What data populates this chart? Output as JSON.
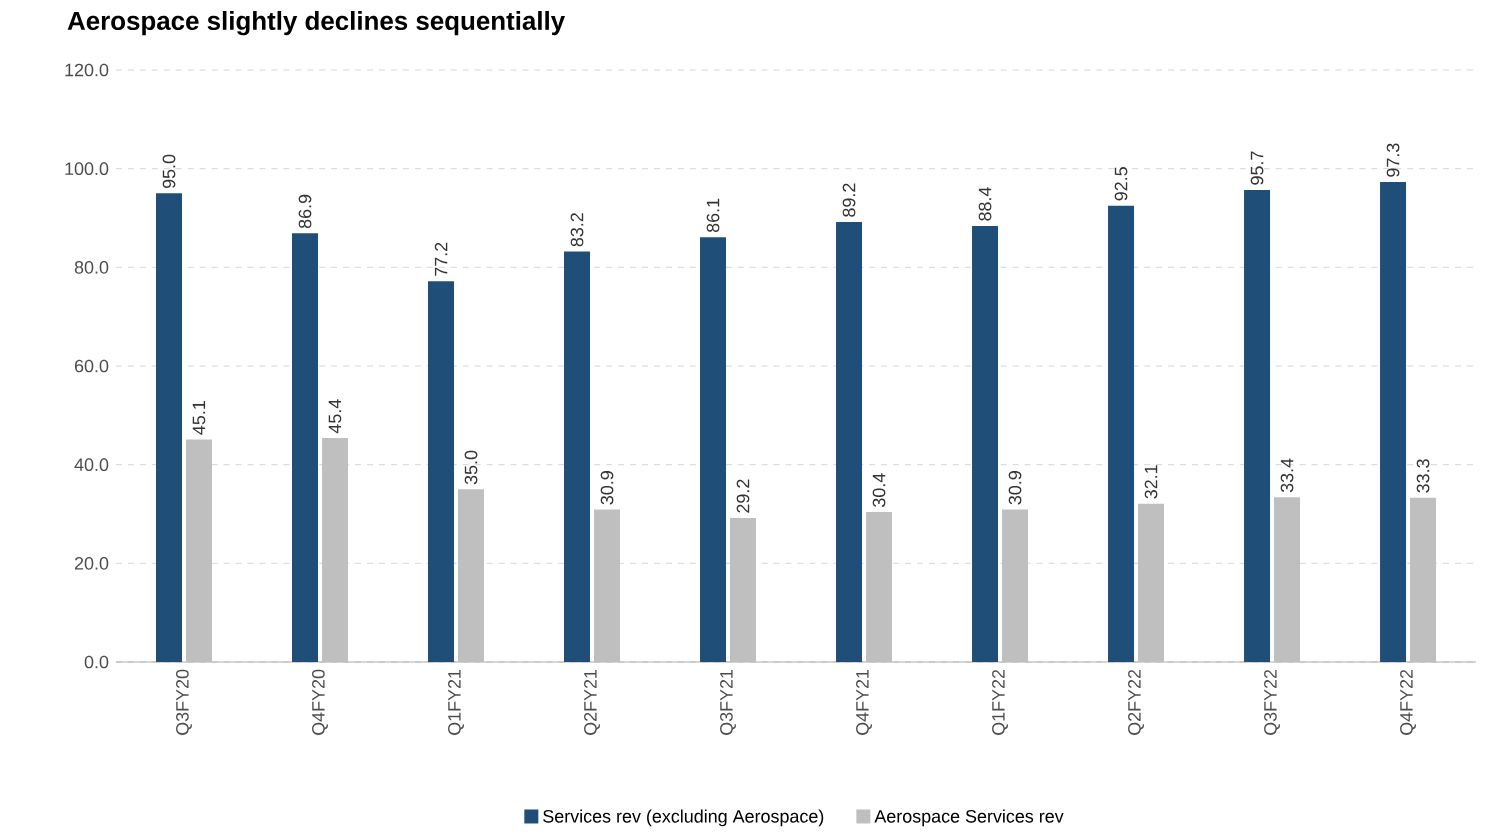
{
  "chart_data": {
    "type": "bar",
    "title": "Aerospace slightly declines sequentially",
    "categories": [
      "Q3FY20",
      "Q4FY20",
      "Q1FY21",
      "Q2FY21",
      "Q3FY21",
      "Q4FY21",
      "Q1FY22",
      "Q2FY22",
      "Q3FY22",
      "Q4FY22"
    ],
    "series": [
      {
        "name": "Services rev (excluding Aerospace)",
        "color": "#1f4e79",
        "values": [
          95.0,
          86.9,
          77.2,
          83.2,
          86.1,
          89.2,
          88.4,
          92.5,
          95.7,
          97.3
        ],
        "value_labels": [
          "95.0",
          "86.9",
          "77.2",
          "83.2",
          "86.1",
          "89.2",
          "88.4",
          "92.5",
          "95.7",
          "97.3"
        ]
      },
      {
        "name": "Aerospace Services rev",
        "color": "#bfbfbf",
        "values": [
          45.1,
          45.4,
          35.0,
          30.9,
          29.2,
          30.4,
          30.9,
          32.1,
          33.4,
          33.3
        ],
        "value_labels": [
          "45.1",
          "45.4",
          "35.0",
          "30.9",
          "29.2",
          "30.4",
          "30.9",
          "32.1",
          "33.4",
          "33.3"
        ]
      }
    ],
    "ylim": [
      0,
      120
    ],
    "yticks": [
      {
        "value": 0,
        "label": "0.0"
      },
      {
        "value": 20,
        "label": "20.0"
      },
      {
        "value": 40,
        "label": "40.0"
      },
      {
        "value": 60,
        "label": "60.0"
      },
      {
        "value": 80,
        "label": "80.0"
      },
      {
        "value": 100,
        "label": "100.0"
      },
      {
        "value": 120,
        "label": "120.0"
      }
    ],
    "grid": "y",
    "legend": "bottom"
  }
}
